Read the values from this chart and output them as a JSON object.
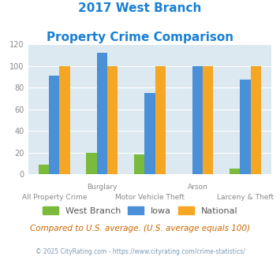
{
  "title_line1": "2017 West Branch",
  "title_line2": "Property Crime Comparison",
  "categories": [
    "All Property Crime",
    "Burglary",
    "Motor Vehicle Theft",
    "Arson",
    "Larceny & Theft"
  ],
  "x_labels_top": [
    "",
    "Burglary",
    "",
    "Arson",
    ""
  ],
  "x_labels_bottom": [
    "All Property Crime",
    "",
    "Motor Vehicle Theft",
    "",
    "Larceny & Theft"
  ],
  "west_branch": [
    9,
    20,
    18,
    0,
    5
  ],
  "iowa": [
    91,
    112,
    75,
    100,
    87
  ],
  "national": [
    100,
    100,
    100,
    100,
    100
  ],
  "bar_colors": {
    "west_branch": "#7cba3d",
    "iowa": "#4a90d9",
    "national": "#f5a623"
  },
  "ylim": [
    0,
    120
  ],
  "yticks": [
    0,
    20,
    40,
    60,
    80,
    100,
    120
  ],
  "plot_bg_color": "#dce9f0",
  "title_color": "#1a7fd4",
  "footer_color": "#cc6600",
  "copyright_color": "#7a9ab5",
  "copyright_link_color": "#4a90d9",
  "tick_label_color": "#888888",
  "footer_text": "Compared to U.S. average. (U.S. average equals 100)",
  "copyright_text": "© 2025 CityRating.com - https://www.cityrating.com/crime-statistics/",
  "legend_labels": [
    "West Branch",
    "Iowa",
    "National"
  ],
  "bar_width": 0.22
}
